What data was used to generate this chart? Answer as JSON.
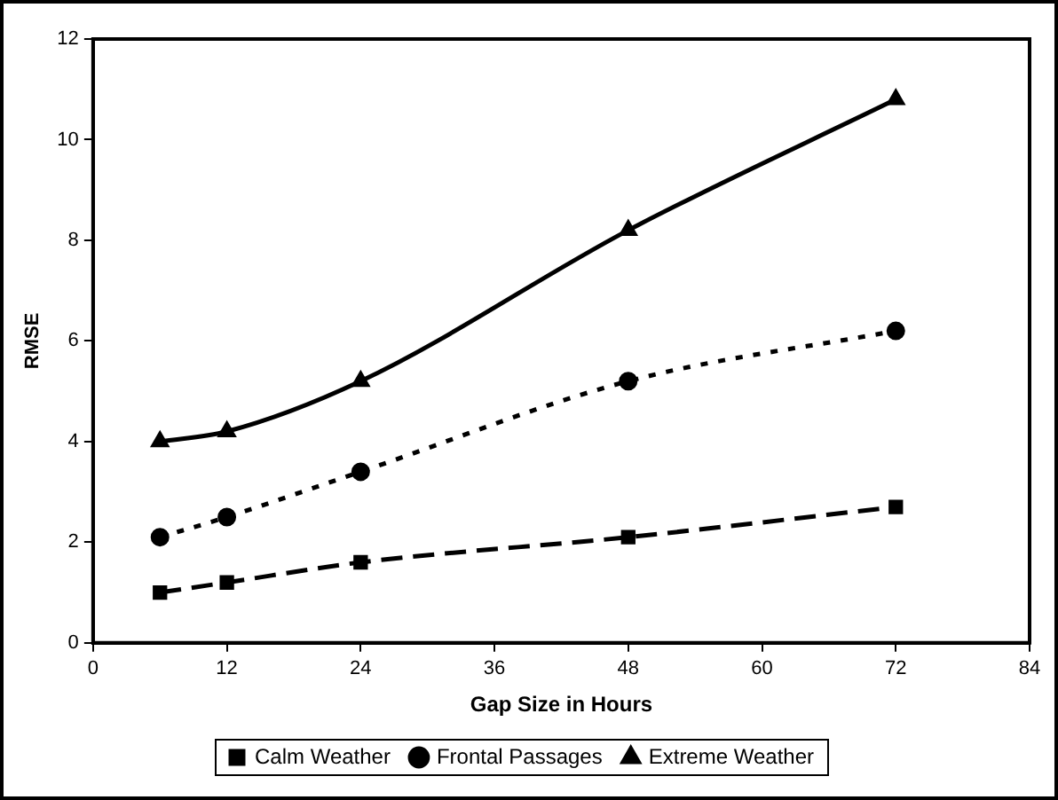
{
  "chart_data": {
    "type": "line",
    "xlabel": "Gap Size in Hours",
    "ylabel": "RMSE",
    "xlim": [
      0,
      84
    ],
    "xticks": [
      0,
      12,
      24,
      36,
      48,
      60,
      72,
      84
    ],
    "ylim": [
      0,
      12
    ],
    "yticks": [
      0,
      2,
      4,
      6,
      8,
      10,
      12
    ],
    "grid": false,
    "legend": "bottom",
    "series": [
      {
        "name": "Calm Weather",
        "color": "#000000",
        "marker": "square",
        "line_style": "dashed",
        "x": [
          6,
          12,
          24,
          48,
          72
        ],
        "values": [
          1.0,
          1.2,
          1.6,
          2.1,
          2.7
        ]
      },
      {
        "name": "Frontal Passages",
        "color": "#000000",
        "marker": "circle",
        "line_style": "dotted",
        "x": [
          6,
          12,
          24,
          48,
          72
        ],
        "values": [
          2.1,
          2.5,
          3.4,
          5.2,
          6.2
        ]
      },
      {
        "name": "Extreme Weather",
        "color": "#000000",
        "marker": "triangle",
        "line_style": "solid",
        "x": [
          6,
          12,
          24,
          48,
          72
        ],
        "values": [
          4.0,
          4.2,
          5.2,
          8.2,
          10.8
        ]
      }
    ]
  }
}
